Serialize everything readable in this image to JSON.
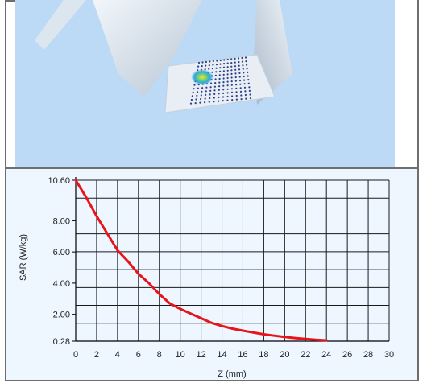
{
  "chart_data": {
    "type": "line",
    "title": "",
    "xlabel": "Z (mm)",
    "ylabel": "SAR (W/kg)",
    "xlim": [
      0,
      30
    ],
    "ylim": [
      0.28,
      10.6
    ],
    "x_ticks": [
      0,
      2,
      4,
      6,
      8,
      10,
      12,
      14,
      16,
      18,
      20,
      22,
      24,
      26,
      28,
      30
    ],
    "y_ticks": [
      {
        "value": 0.28,
        "label": "0.28"
      },
      {
        "value": 2.0,
        "label": "2.00"
      },
      {
        "value": 4.0,
        "label": "4.00"
      },
      {
        "value": 6.0,
        "label": "6.00"
      },
      {
        "value": 8.0,
        "label": "8.00"
      },
      {
        "value": 10.6,
        "label": "10.60"
      }
    ],
    "grid": true,
    "line_color": "#e8141c",
    "series": [
      {
        "x": [
          0,
          1,
          2,
          3,
          4,
          5,
          6,
          7,
          8,
          9,
          10,
          11,
          12,
          13,
          14,
          15,
          16,
          17,
          18,
          19,
          20,
          21,
          22,
          23,
          24
        ],
        "y": [
          10.6,
          9.5,
          8.3,
          7.2,
          6.1,
          5.4,
          4.6,
          4.0,
          3.3,
          2.7,
          2.35,
          2.05,
          1.75,
          1.45,
          1.25,
          1.08,
          0.95,
          0.83,
          0.72,
          0.63,
          0.55,
          0.48,
          0.42,
          0.37,
          0.33
        ]
      }
    ]
  }
}
